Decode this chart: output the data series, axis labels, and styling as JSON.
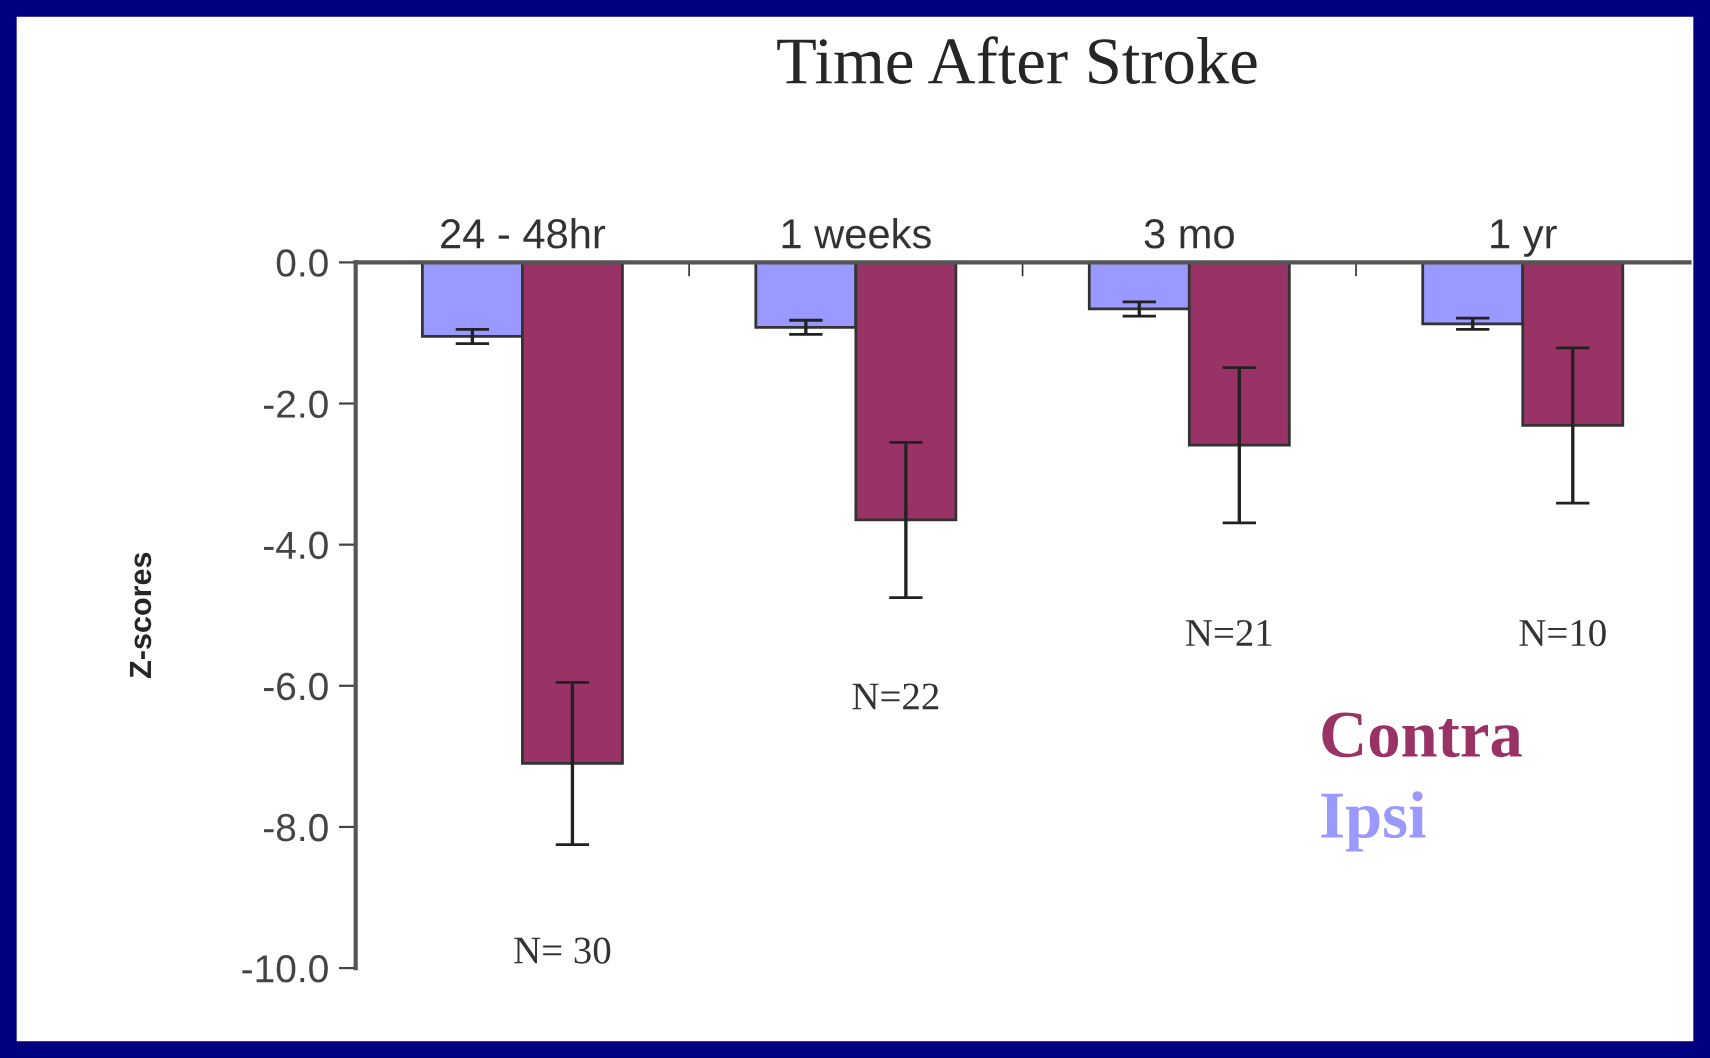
{
  "chart_data": {
    "type": "bar",
    "title": "Time After Stroke",
    "ylabel": "Z-scores",
    "categories": [
      "24 - 48hr",
      "1 weeks",
      "3 mo",
      "1 yr"
    ],
    "series": [
      {
        "name": "Ipsi",
        "color": "#9999ff",
        "values": [
          -1.05,
          -0.92,
          -0.66,
          -0.87
        ],
        "errors": [
          0.1,
          0.1,
          0.1,
          0.08
        ]
      },
      {
        "name": "Contra",
        "color": "#993366",
        "values": [
          -7.1,
          -3.65,
          -2.59,
          -2.31
        ],
        "errors": [
          1.15,
          1.1,
          1.1,
          1.1
        ]
      }
    ],
    "ylim": [
      -10,
      0
    ],
    "yticks": [
      {
        "value": 0,
        "label": "0.0"
      },
      {
        "value": -2,
        "label": "-2.0"
      },
      {
        "value": -4,
        "label": "-4.0"
      },
      {
        "value": -6,
        "label": "-6.0"
      },
      {
        "value": -8,
        "label": "-8.0"
      },
      {
        "value": -10,
        "label": "-10.0"
      }
    ],
    "annotations": [
      "N= 30",
      "N=22",
      "N=21",
      "N=10"
    ],
    "legend": "bottom right",
    "grid": false
  }
}
